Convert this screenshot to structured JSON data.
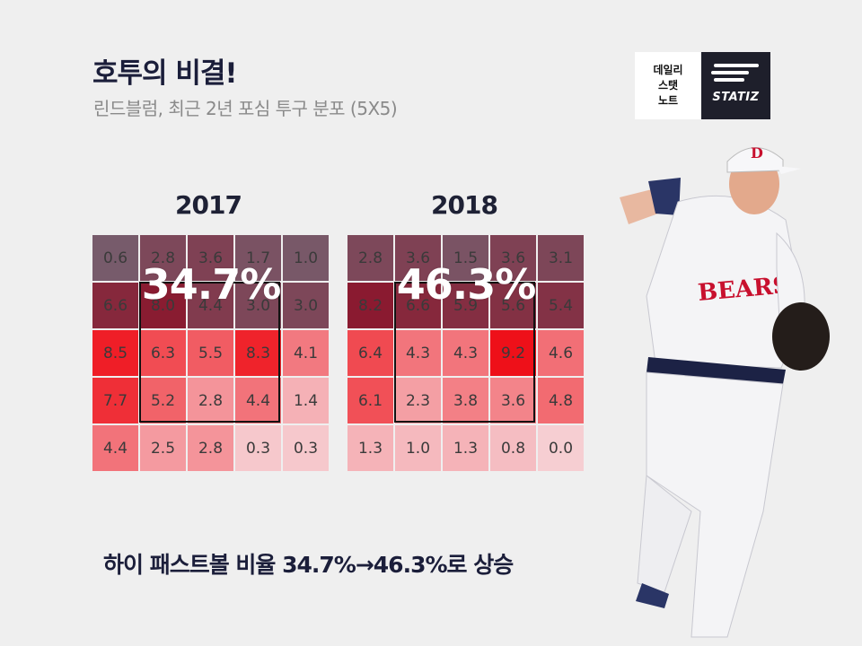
{
  "header": {
    "title": "호투의 비결!",
    "subtitle": "린드블럼, 최근 2년 포심 투구 분포 (5X5)"
  },
  "logo": {
    "lines": [
      "데일리",
      "스탯",
      "노트"
    ],
    "brand": "STATIZ"
  },
  "caption": "하이 패스트볼 비율 34.7%→46.3%로 상승",
  "chart_data": [
    {
      "type": "heatmap",
      "title": "2017",
      "highlight": "34.7%",
      "values": [
        [
          "0.6",
          "2.8",
          "3.6",
          "1.7",
          "1.0"
        ],
        [
          "6.6",
          "8.0",
          "4.4",
          "3.0",
          "3.0"
        ],
        [
          "8.5",
          "6.3",
          "5.5",
          "8.3",
          "4.1"
        ],
        [
          "7.7",
          "5.2",
          "2.8",
          "4.4",
          "1.4"
        ],
        [
          "4.4",
          "2.5",
          "2.8",
          "0.3",
          "0.3"
        ]
      ]
    },
    {
      "type": "heatmap",
      "title": "2018",
      "highlight": "46.3%",
      "values": [
        [
          "2.8",
          "3.6",
          "1.5",
          "3.6",
          "3.1"
        ],
        [
          "8.2",
          "6.6",
          "5.9",
          "5.6",
          "5.4"
        ],
        [
          "6.4",
          "4.3",
          "4.3",
          "9.2",
          "4.6"
        ],
        [
          "6.1",
          "2.3",
          "3.8",
          "3.6",
          "4.8"
        ],
        [
          "1.3",
          "1.0",
          "1.3",
          "0.8",
          "0.0"
        ]
      ]
    }
  ]
}
